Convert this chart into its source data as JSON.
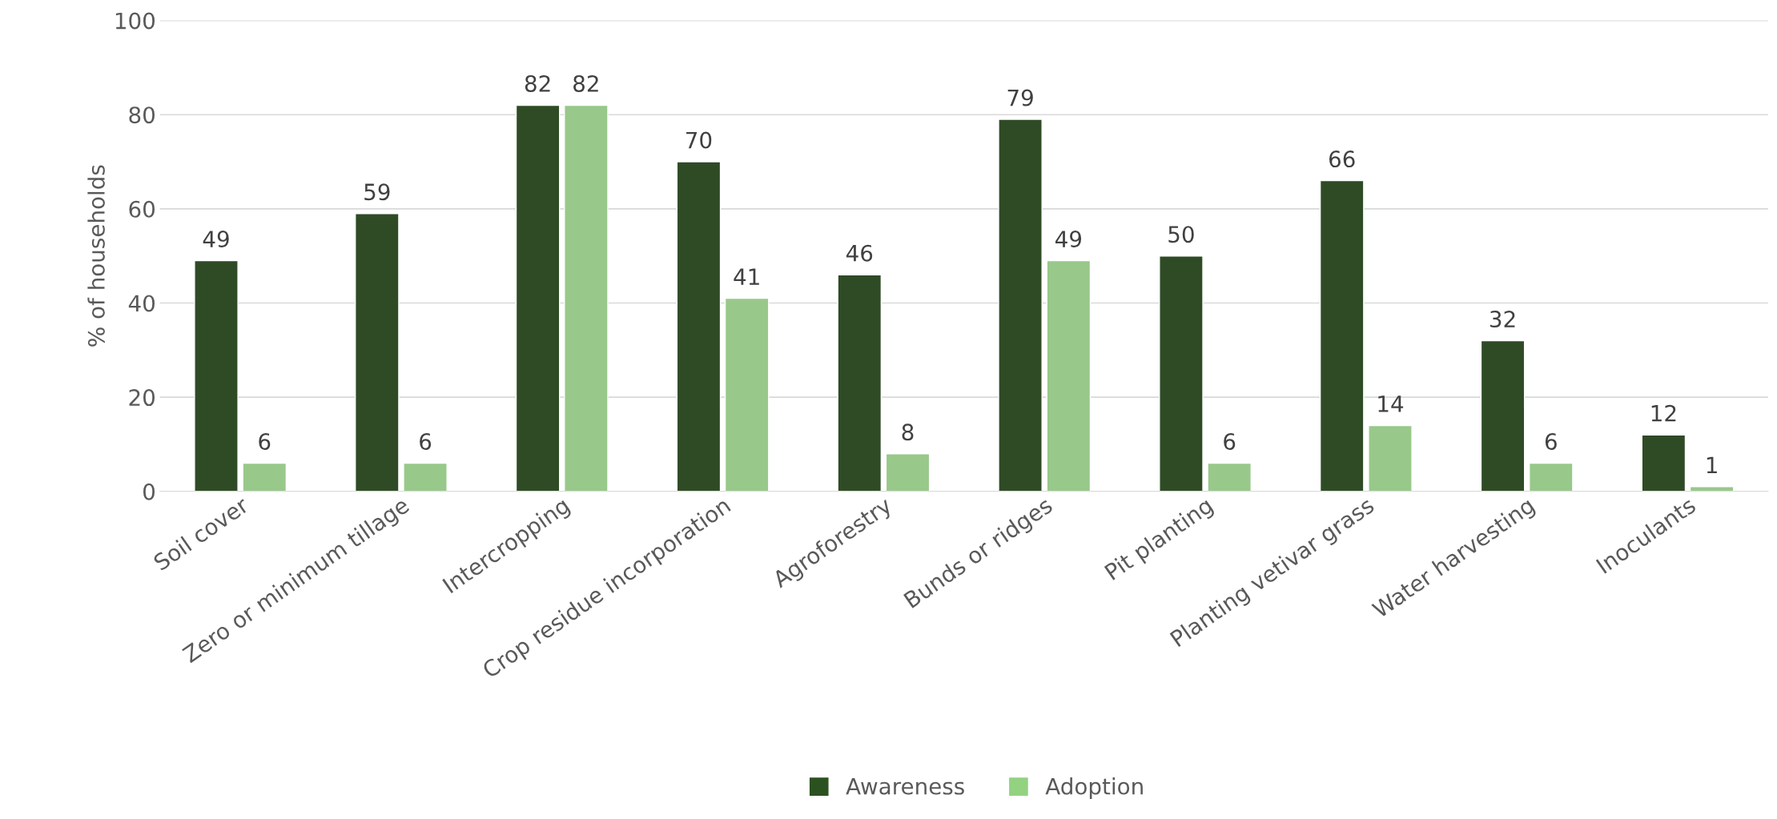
{
  "chart_data": {
    "type": "bar",
    "ylabel": "% of households",
    "categories": [
      "Soil cover",
      "Zero or minimum tillage",
      "Intercropping",
      "Crop residue incorporation",
      "Agroforestry",
      "Bunds or ridges",
      "Pit planting",
      "Planting vetivar grass",
      "Water harvesting",
      "Inoculants"
    ],
    "series": [
      {
        "name": "Awareness",
        "color": "#2c5120",
        "values": [
          49,
          59,
          82,
          70,
          46,
          79,
          50,
          66,
          32,
          12
        ]
      },
      {
        "name": "Adoption",
        "color": "#93d280",
        "values": [
          6,
          6,
          82,
          41,
          8,
          49,
          6,
          14,
          6,
          1
        ]
      }
    ],
    "ylim": [
      0,
      100
    ],
    "yticks": [
      0,
      20,
      40,
      60,
      80,
      100
    ],
    "grid": "y",
    "legend": "bottom",
    "data_labels": true
  }
}
